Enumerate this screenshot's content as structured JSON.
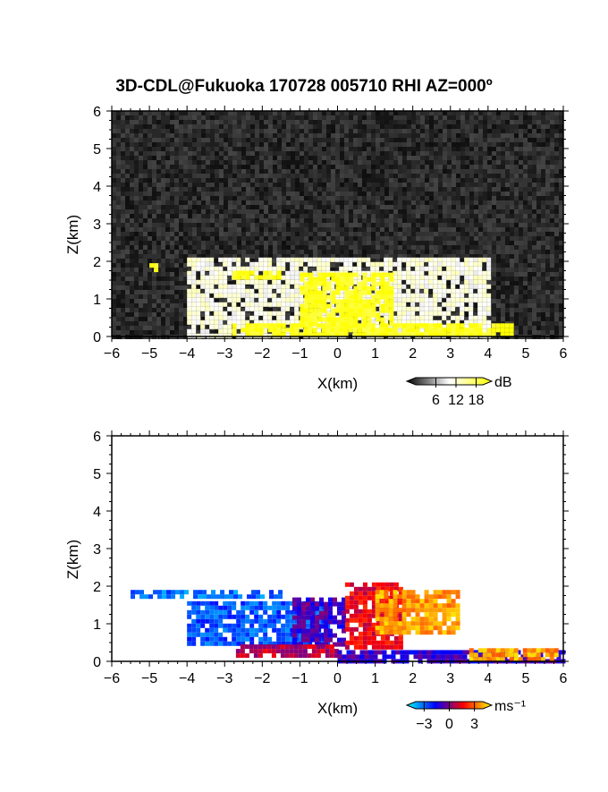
{
  "title": "3D-CDL@Fukuoka 170728 005710 RHI AZ=000º",
  "chart_data": [
    {
      "type": "heatmap",
      "panel": "reflectivity",
      "xlabel": "X(km)",
      "ylabel": "Z(km)",
      "xlim": [
        -6,
        6
      ],
      "ylim": [
        0,
        6
      ],
      "xticks": [
        "-6",
        "-5",
        "-4",
        "-3",
        "-2",
        "-1",
        "0",
        "1",
        "2",
        "3",
        "4",
        "5",
        "6"
      ],
      "yticks": [
        "0",
        "1",
        "2",
        "3",
        "4",
        "5",
        "6"
      ],
      "colorbar": {
        "unit": "dB",
        "ticks": [
          "6",
          "12",
          "18"
        ],
        "range": [
          0,
          20
        ],
        "colormap": [
          "#000000",
          "#ffffff",
          "#ffff00"
        ]
      },
      "echo_layers": [
        {
          "x0": -4.0,
          "x1": 4.0,
          "z0": 0.0,
          "z1": 2.1,
          "value": 11,
          "note": "grey scatter fan"
        },
        {
          "x0": -2.8,
          "x1": 4.6,
          "z0": 0.0,
          "z1": 0.35,
          "value": 19
        },
        {
          "x0": -1.0,
          "x1": 1.4,
          "z0": 0.3,
          "z1": 1.7,
          "value": 19
        },
        {
          "x0": -2.8,
          "x1": -1.6,
          "z0": 1.55,
          "z1": 1.75,
          "value": 19
        },
        {
          "x0": -5.0,
          "x1": -4.8,
          "z0": 1.8,
          "z1": 1.95,
          "value": 19
        }
      ]
    },
    {
      "type": "heatmap",
      "panel": "doppler velocity",
      "xlabel": "X(km)",
      "ylabel": "Z(km)",
      "xlim": [
        -6,
        6
      ],
      "ylim": [
        0,
        6
      ],
      "xticks": [
        "-6",
        "-5",
        "-4",
        "-3",
        "-2",
        "-1",
        "0",
        "1",
        "2",
        "3",
        "4",
        "5",
        "6"
      ],
      "yticks": [
        "0",
        "1",
        "2",
        "3",
        "4",
        "5",
        "6"
      ],
      "colorbar": {
        "unit": "ms⁻¹",
        "ticks": [
          "−3",
          "0",
          "3"
        ],
        "range": [
          -4,
          4
        ],
        "colormap": [
          "#00ffff",
          "#0000ff",
          "#ff0000",
          "#ffff00"
        ]
      },
      "echo_layers": [
        {
          "x0": -5.5,
          "x1": -1.5,
          "z0": 1.7,
          "z1": 1.9,
          "value": -2.5
        },
        {
          "x0": -4.0,
          "x1": -0.2,
          "z0": 0.5,
          "z1": 1.6,
          "value": -2.2
        },
        {
          "x0": -1.2,
          "x1": 0.2,
          "z0": 0.5,
          "z1": 1.7,
          "value": -0.6
        },
        {
          "x0": 0.2,
          "x1": 1.7,
          "z0": 0.4,
          "z1": 2.1,
          "value": 1.2
        },
        {
          "x0": 1.0,
          "x1": 3.2,
          "z0": 0.8,
          "z1": 1.9,
          "value": 3.0
        },
        {
          "x0": -2.7,
          "x1": 0.0,
          "z0": 0.1,
          "z1": 0.45,
          "value": 0.6
        },
        {
          "x0": 0.0,
          "x1": 6.0,
          "z0": 0.0,
          "z1": 0.3,
          "value": -0.8
        },
        {
          "x0": 3.5,
          "x1": 5.8,
          "z0": 0.1,
          "z1": 0.35,
          "value": 3.0
        }
      ]
    }
  ]
}
